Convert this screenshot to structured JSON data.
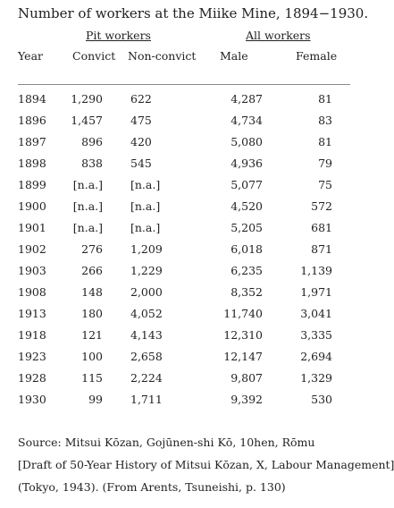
{
  "title": "Number of workers at the Miike Mine, 1894−1930.",
  "table": {
    "group_headers": [
      "Pit workers",
      "All workers"
    ],
    "columns": [
      "Year",
      "Convict",
      "Non-convict",
      "Male",
      "Female"
    ],
    "rows": [
      [
        "1894",
        "1,290",
        "622",
        "4,287",
        "81"
      ],
      [
        "1896",
        "1,457",
        "475",
        "4,734",
        "83"
      ],
      [
        "1897",
        "896",
        "420",
        "5,080",
        "81"
      ],
      [
        "1898",
        "838",
        "545",
        "4,936",
        "79"
      ],
      [
        "1899",
        "[n.a.]",
        "[n.a.]",
        "5,077",
        "75"
      ],
      [
        "1900",
        "[n.a.]",
        "[n.a.]",
        "4,520",
        "572"
      ],
      [
        "1901",
        "[n.a.]",
        "[n.a.]",
        "5,205",
        "681"
      ],
      [
        "1902",
        "276",
        "1,209",
        "6,018",
        "871"
      ],
      [
        "1903",
        "266",
        "1,229",
        "6,235",
        "1,139"
      ],
      [
        "1908",
        "148",
        "2,000",
        "8,352",
        "1,971"
      ],
      [
        "1913",
        "180",
        "4,052",
        "11,740",
        "3,041"
      ],
      [
        "1918",
        "121",
        "4,143",
        "12,310",
        "3,335"
      ],
      [
        "1923",
        "100",
        "2,658",
        "12,147",
        "2,694"
      ],
      [
        "1928",
        "115",
        "2,224",
        "9,807",
        "1,329"
      ],
      [
        "1930",
        "99",
        "1,711",
        "9,392",
        "530"
      ]
    ]
  },
  "source": [
    "Source: Mitsui Kōzan, Gojūnen-shi Kō, 10hen, Rōmu",
    "[Draft of 50-Year History of Mitsui Kōzan, X, Labour Management]",
    "(Tokyo, 1943). (From Arents, Tsuneishi, p. 130)"
  ]
}
